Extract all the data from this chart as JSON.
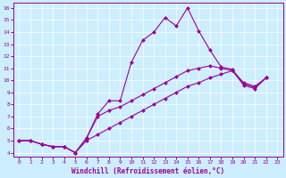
{
  "xlabel": "Windchill (Refroidissement éolien,°C)",
  "bg_color": "#cceeff",
  "line_color": "#990099",
  "grid_color": "#ffffff",
  "spine_color": "#990099",
  "xlim": [
    -0.5,
    23.5
  ],
  "ylim": [
    3.7,
    16.4
  ],
  "yticks": [
    4,
    5,
    6,
    7,
    8,
    9,
    10,
    11,
    12,
    13,
    14,
    15,
    16
  ],
  "xticks": [
    0,
    1,
    2,
    3,
    4,
    5,
    6,
    7,
    8,
    9,
    10,
    11,
    12,
    13,
    14,
    15,
    16,
    17,
    18,
    19,
    20,
    21,
    22,
    23
  ],
  "s1_x": [
    0,
    1,
    2,
    3,
    4,
    5,
    6,
    7,
    8,
    9,
    10,
    11,
    12,
    13,
    14,
    15,
    16,
    17,
    18,
    19,
    20,
    21,
    22
  ],
  "s1_y": [
    5.0,
    5.0,
    4.7,
    4.5,
    4.5,
    4.0,
    5.2,
    7.2,
    8.3,
    8.3,
    11.5,
    13.3,
    14.0,
    15.2,
    14.5,
    16.0,
    14.1,
    12.5,
    11.1,
    10.9,
    9.7,
    9.4,
    10.2
  ],
  "s2_x": [
    0,
    1,
    2,
    3,
    4,
    5,
    6,
    7,
    8,
    9,
    10,
    11,
    12,
    13,
    14,
    15,
    16,
    17,
    18,
    19,
    20,
    21,
    22
  ],
  "s2_y": [
    5.0,
    5.0,
    4.7,
    4.5,
    4.5,
    4.0,
    5.2,
    7.0,
    7.5,
    7.8,
    8.3,
    8.8,
    9.3,
    9.8,
    10.3,
    10.8,
    11.0,
    11.2,
    11.0,
    10.8,
    9.8,
    9.5,
    10.2
  ],
  "s3_x": [
    0,
    1,
    2,
    3,
    4,
    5,
    6,
    7,
    8,
    9,
    10,
    11,
    12,
    13,
    14,
    15,
    16,
    17,
    18,
    19,
    20,
    21,
    22
  ],
  "s3_y": [
    5.0,
    5.0,
    4.7,
    4.5,
    4.5,
    4.0,
    5.0,
    5.5,
    6.0,
    6.5,
    7.0,
    7.5,
    8.0,
    8.5,
    9.0,
    9.5,
    9.8,
    10.2,
    10.5,
    10.8,
    9.6,
    9.3,
    10.2
  ],
  "tick_fontsize": 4.5,
  "xlabel_fontsize": 5.5,
  "marker_size": 2.0,
  "line_width": 0.8
}
